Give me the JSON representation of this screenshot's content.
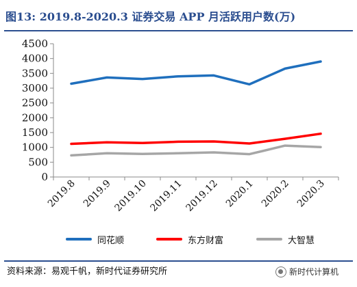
{
  "page_title": "图13:   2019.8-2020.3 证券交易 APP 月活跃用户数(万)",
  "source_text": "资料来源：易观千帆，新时代证券研究所",
  "watermark_text": "新时代计算机",
  "chart_data": {
    "type": "line",
    "title": "图13:   2019.8-2020.3 证券交易 APP 月活跃用户数(万)",
    "xlabel": "",
    "ylabel": "",
    "x": [
      "2019.8",
      "2019.9",
      "2019.10",
      "2019.11",
      "2019.12",
      "2020.1",
      "2020.2",
      "2020.3"
    ],
    "ylim": [
      0,
      4500
    ],
    "yticks": [
      "0",
      "500",
      "1000",
      "1500",
      "2000",
      "2500",
      "3000",
      "3500",
      "4000",
      "4500"
    ],
    "grid": false,
    "legend_position": "bottom",
    "series": [
      {
        "name": "同花顺",
        "color": "#1f6fbd",
        "values": [
          3150,
          3360,
          3310,
          3400,
          3430,
          3130,
          3660,
          3900
        ]
      },
      {
        "name": "东方财富",
        "color": "#ff0000",
        "values": [
          1120,
          1170,
          1150,
          1190,
          1200,
          1130,
          1290,
          1460
        ]
      },
      {
        "name": "大智慧",
        "color": "#a6a6a6",
        "values": [
          730,
          800,
          780,
          800,
          830,
          770,
          1060,
          1010
        ]
      }
    ]
  }
}
